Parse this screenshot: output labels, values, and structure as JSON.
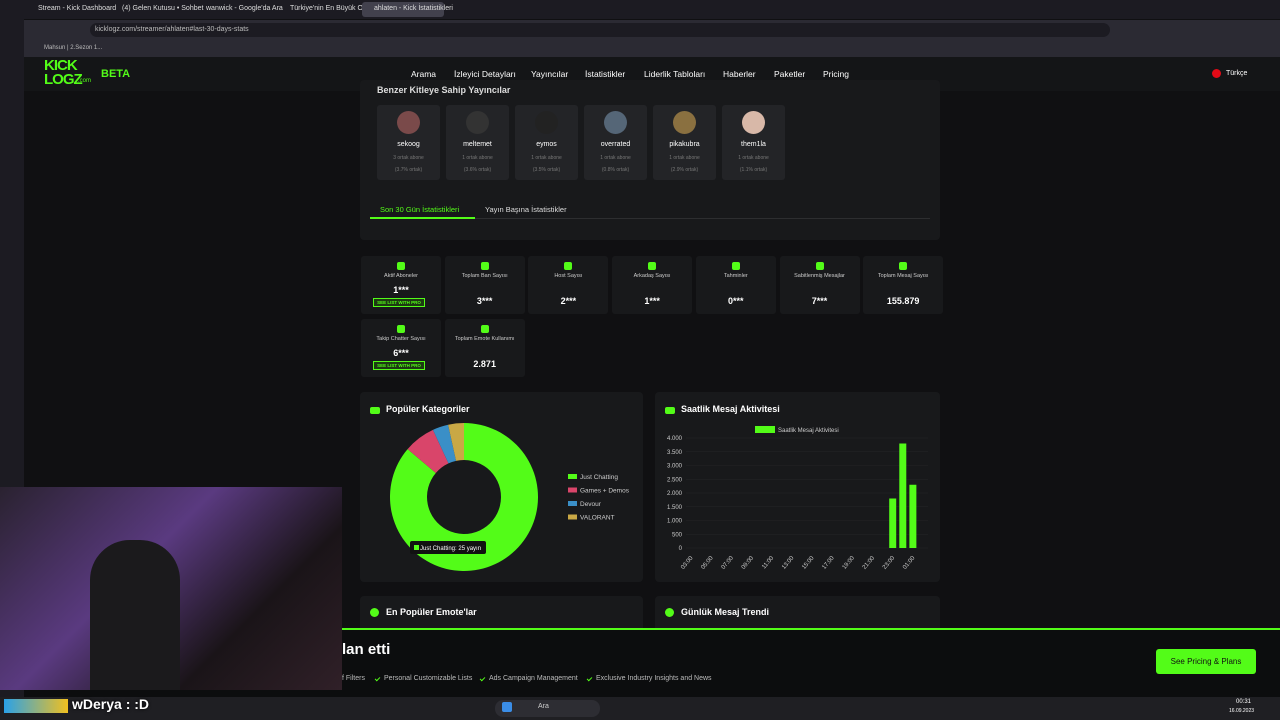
{
  "browser": {
    "tabs": [
      "Stream - Kick Dashboard",
      "(4) Gelen Kutusu • Sohbet",
      "wanwick - Google'da Ara",
      "Türkiye'nin En Büyük Oy...",
      "ahlaten - Kick İstatistikleri"
    ],
    "url": "kicklogz.com/streamer/ahlaten#last-30-days-stats",
    "bookmark": "Mahsun | 2.Sezon 1..."
  },
  "nav": {
    "logo_top": "KICK",
    "logo_bottom": "LOGZ",
    "logo_suffix": ".com",
    "beta": "BETA",
    "links": [
      "Arama",
      "İzleyici Detayları",
      "Yayıncılar",
      "İstatistikler",
      "Liderlik Tabloları",
      "Haberler",
      "Paketler",
      "Pricing"
    ],
    "language": "Türkçe"
  },
  "similar": {
    "title": "Benzer Kitleye Sahip Yayıncılar",
    "streamers": [
      {
        "name": "sekoog",
        "shared": "3 ortak abone",
        "percent": "(3.7% ortak)"
      },
      {
        "name": "meltemet",
        "shared": "1 ortak abone",
        "percent": "(3.6% ortak)"
      },
      {
        "name": "eymos",
        "shared": "1 ortak abone",
        "percent": "(3.5% ortak)"
      },
      {
        "name": "overrated",
        "shared": "1 ortak abone",
        "percent": "(0.8% ortak)"
      },
      {
        "name": "pikakubra",
        "shared": "1 ortak abone",
        "percent": "(2.9% ortak)"
      },
      {
        "name": "them1la",
        "shared": "1 ortak abone",
        "percent": "(1.1% ortak)"
      }
    ]
  },
  "tabs": [
    "Son 30 Gün İstatistikleri",
    "Yayın Başına İstatistikler"
  ],
  "stats": [
    {
      "label": "Aktif Aboneler",
      "value": "1***",
      "badge": "SEE LIST WITH PRO"
    },
    {
      "label": "Toplam Ban Sayısı",
      "value": "3***"
    },
    {
      "label": "Host Sayısı",
      "value": "2***"
    },
    {
      "label": "Arkadaş Sayısı",
      "value": "1***"
    },
    {
      "label": "Tahminler",
      "value": "0***"
    },
    {
      "label": "Sabitlenmiş Mesajlar",
      "value": "7***"
    },
    {
      "label": "Toplam Mesaj Sayısı",
      "value": "155.879"
    },
    {
      "label": "Takip Chatter Sayısı",
      "value": "6***",
      "badge": "SEE LIST WITH PRO"
    },
    {
      "label": "Toplam Emote Kullanımı",
      "value": "2.871"
    }
  ],
  "chart_data": [
    {
      "type": "pie",
      "title": "Popüler Kategoriler",
      "categories": [
        "Just Chatting",
        "Games + Demos",
        "Devour",
        "VALORANT"
      ],
      "values": [
        25,
        2,
        1,
        1
      ],
      "colors": [
        "#53fc18",
        "#d9456a",
        "#3a8fc7",
        "#c9a845"
      ],
      "tooltip": "Just Chatting: 25 yayın"
    },
    {
      "type": "bar",
      "title": "Saatlik Mesaj Aktivitesi",
      "categories": [
        "03:00",
        null,
        "05:00",
        null,
        "07:00",
        null,
        "09:00",
        null,
        "11:00",
        null,
        "13:00",
        null,
        "15:00",
        null,
        "17:00",
        null,
        "19:00",
        null,
        "21:00",
        null,
        "23:00",
        null,
        "01:00",
        null
      ],
      "series": [
        {
          "name": "Saatlik Mesaj Aktivitesi",
          "color": "#53fc18",
          "values": [
            0,
            0,
            0,
            0,
            0,
            0,
            0,
            0,
            0,
            0,
            0,
            0,
            0,
            0,
            0,
            0,
            0,
            0,
            0,
            0,
            1800,
            3800,
            2300,
            0
          ]
        }
      ],
      "ylim": [
        0,
        4000
      ],
      "yticks": [
        0,
        500,
        {
          "value": 1000,
          "label": "1.000"
        },
        {
          "value": 1500,
          "label": "1.500"
        },
        {
          "value": 2000,
          "label": "2.000"
        },
        {
          "value": 2500,
          "label": "2.500"
        },
        {
          "value": 3000,
          "label": "3.000"
        },
        {
          "value": 3500,
          "label": "3.500"
        },
        {
          "value": 4000,
          "label": "4.000"
        }
      ],
      "grid": true
    }
  ],
  "sections": [
    "En Popüler Emote'lar",
    "Günlük Mesaj Trendi"
  ],
  "promo": {
    "headline": "lan etti",
    "features": [
      "f Filters",
      "Personal Customizable Lists",
      "Ads Campaign Management",
      "Exclusive Industry Insights and News"
    ],
    "button": "See Pricing & Plans"
  },
  "stream_overlay": {
    "chat": "wDerya : :D"
  },
  "taskbar": {
    "search": "Ara",
    "time": "00:31",
    "date": "16.09.2023"
  }
}
